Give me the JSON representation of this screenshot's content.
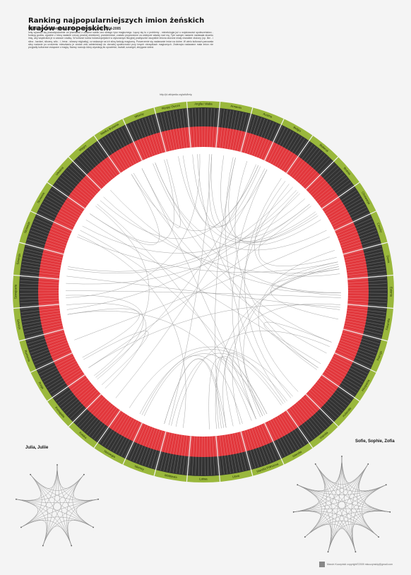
{
  "header": {
    "title": "Ranking najpopularniejszych imion żeńskich krajów europejskich.",
    "subtitle": "Układanie alfabetyczne. Dane pochodzą z lat 2004-2005",
    "intro": "Imię wywodzi się prawdopodobnie od przesłanki z czasem nabiło ono silnego rysu magicznego. Łączy się to z problemy - mimetologia już u wojskowości społeczeństwo - funkcją godów, zgodnie z którą nadanie rzeczy pewnej określonej, przedmiotowi, zostało przyzwolone za zdobycie władzy nad nią. Tym samym nadanie nadawała słowniu imię, aby wspierałoś je w zawsze rzadką. W kulturze ludów indoeuropejskich w wykonanym fikcyjnej praktycznie wszystkie imiona złożone miały charakter złożony (np. Ilim - i silna - kardzni, silowny, wito - i, Irena - silowny miglostię), co wskazuje na ich silną funkcję magiczną. Poszerzenie się nadawanie imion na dobre. W wielu kulturach panowała silny nadanie po urodzeniu mieszkaniu je zostać zelu administracji do dorosłej społeczności przy innych obrzędkach magicznych. Zwierzęta nadawane mała imion nie przyjadły kulturowe związane z magią. Nazwy rozwoju idżcy wywołują tło opowieści, kształt, szczegół, zbrygane dzieci."
  },
  "source": "http://pl.wikipedia.org/wiki/Imię",
  "small_charts": {
    "left": "Julia, Juliie",
    "right": "Sofie, Sophie, Zofia"
  },
  "footer": "Marcin Kuczyński copyright©2009 mkuczynskiy@gmail.com",
  "colors": {
    "outer_ring": "#9ab83c",
    "dark_ring": "#333333",
    "red_ring": "#e2373c",
    "chord": "#9a9a9a"
  },
  "chart_data": {
    "type": "chord",
    "countries": [
      "Anglia i Walia",
      "Armenia",
      "Austria",
      "Belgia",
      "Białoruś",
      "Bośnia",
      "Chorwacja",
      "Czechy",
      "Dania",
      "Estonia",
      "Finlandia",
      "Francja",
      "Hiszpania",
      "Holandia",
      "Irlandia",
      "Islandia",
      "Irlandia Północna",
      "Litwa",
      "Łotwa",
      "Mołdawia",
      "Niemcy",
      "Norwegia",
      "Polska",
      "Portugalia",
      "Rosja",
      "Rumunia",
      "Szkocja",
      "Szwajcaria",
      "Szwecja",
      "Słowacja",
      "Słowenia",
      "Ukraina",
      "Węgry",
      "Wielka Brytania",
      "Włochy",
      "Wyspy Owcze"
    ],
    "names_per_country": 10,
    "chord_count": 72
  }
}
